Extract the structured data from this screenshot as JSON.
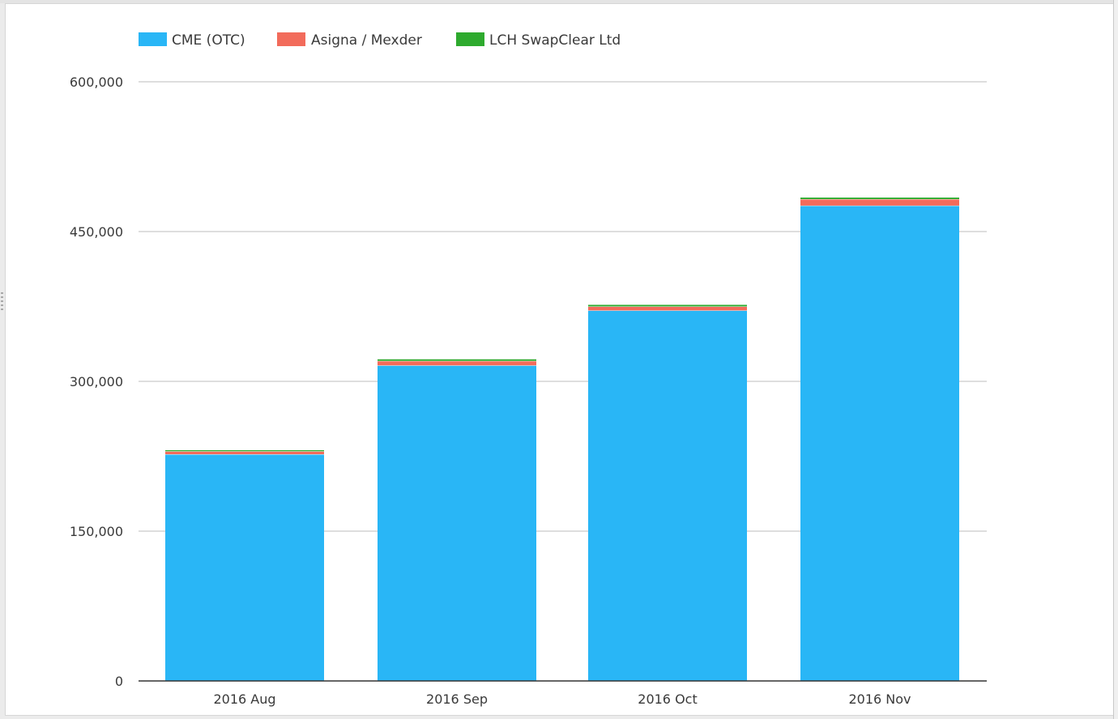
{
  "chart_data": {
    "type": "bar",
    "stacked": true,
    "categories": [
      "2016 Aug",
      "2016 Sep",
      "2016 Oct",
      "2016 Nov"
    ],
    "series": [
      {
        "name": "CME (OTC)",
        "color": "#29b6f6",
        "values": [
          227000,
          316000,
          371000,
          476000
        ]
      },
      {
        "name": "Asigna / Mexder",
        "color": "#f26b5b",
        "values": [
          3000,
          4500,
          4000,
          6500
        ]
      },
      {
        "name": "LCH SwapClear Ltd",
        "color": "#2eaa2e",
        "values": [
          1500,
          2000,
          2000,
          2000
        ]
      }
    ],
    "ylim": [
      0,
      600000
    ],
    "yticks": [
      0,
      150000,
      300000,
      450000,
      600000
    ],
    "ytick_labels": [
      "0",
      "150,000",
      "300,000",
      "450,000",
      "600,000"
    ],
    "grid": true,
    "legend_position": "top-left"
  }
}
